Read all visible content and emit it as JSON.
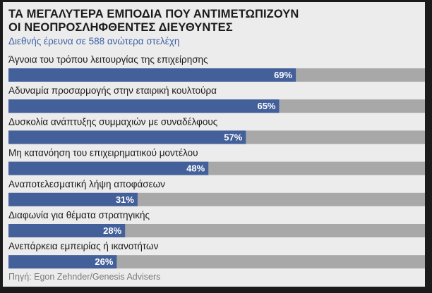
{
  "title": {
    "line1": "ΤΑ ΜΕΓΑΛΥΤΕΡΑ ΕΜΠΟΔΙΑ ΠΟΥ ΑΝΤΙΜΕΤΩΠΙΖΟΥΝ",
    "line2": "ΟΙ ΝΕΟΠΡΟΣΛΗΦΘΕΝΤΕΣ ΔΙΕΥΘΥΝΤΕΣ"
  },
  "subtitle": "Διεθνής έρευνα σε 588 ανώτερα στελέχη",
  "source": "Πηγή: Egon Zehnder/Genesis Advisers",
  "colors": {
    "bar_fill": "#44609b",
    "bar_track": "#a8a8a8",
    "background": "#ececec",
    "subtitle_text": "#3f63a6"
  },
  "chart_data": {
    "type": "bar",
    "orientation": "horizontal",
    "categories": [
      "Άγνοια του τρόπου λειτουργίας της επιχείρησης",
      "Αδυναμία προσαρμογής στην εταιρική κουλτούρα",
      "Δυσκολία ανάπτυξης συμμαχιών με συναδέλφους",
      "Μη κατανόηση του επιχειρηματικού μοντέλου",
      "Αναποτελεσματική λήψη αποφάσεων",
      "Διαφωνία για θέματα στρατηγικής",
      "Ανεπάρκεια εμπειρίας ή ικανοτήτων"
    ],
    "values": [
      69,
      65,
      57,
      48,
      31,
      28,
      26
    ],
    "value_labels": [
      "69%",
      "65%",
      "57%",
      "48%",
      "31%",
      "28%",
      "26%"
    ],
    "xlim": [
      0,
      100
    ],
    "unit": "%",
    "grid": false,
    "legend": "none"
  }
}
